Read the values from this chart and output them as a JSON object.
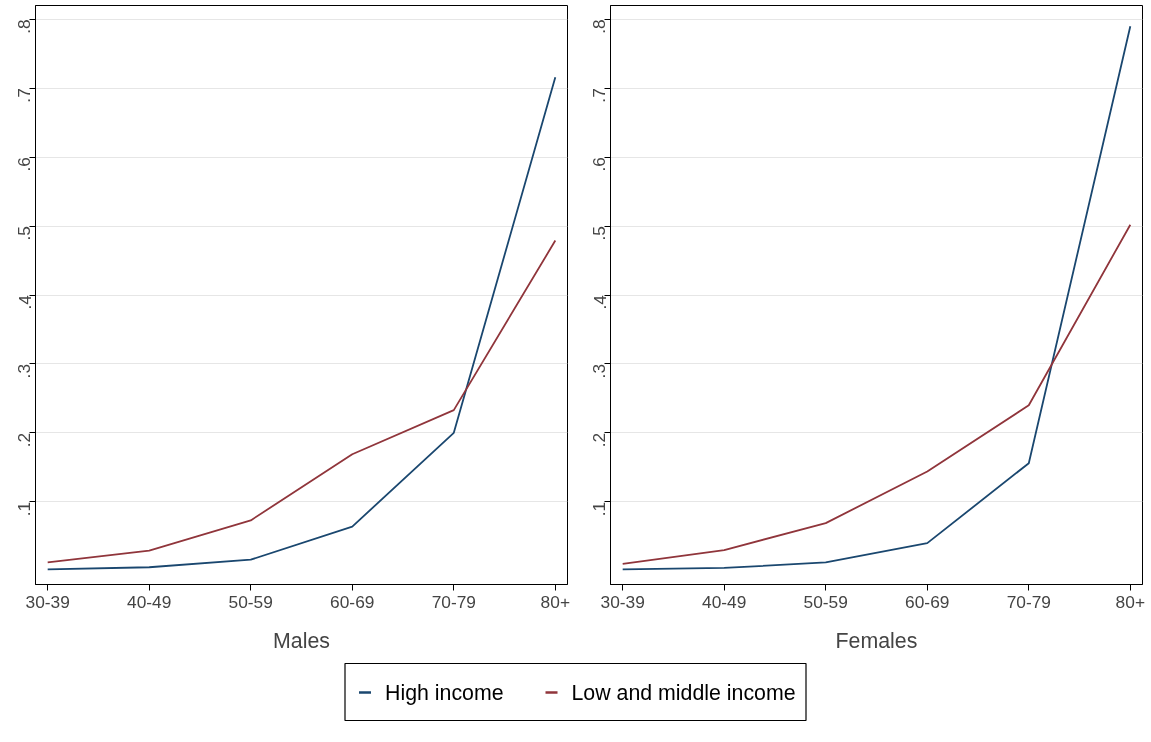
{
  "chart_data": [
    {
      "type": "line",
      "xlabel": "Males",
      "categories": [
        "30-39",
        "40-49",
        "50-59",
        "60-69",
        "70-79",
        "80+"
      ],
      "ylim": [
        -0.02,
        0.82
      ],
      "yticks": [
        {
          "value": 0.1,
          "label": ".1"
        },
        {
          "value": 0.2,
          "label": ".2"
        },
        {
          "value": 0.3,
          "label": ".3"
        },
        {
          "value": 0.4,
          "label": ".4"
        },
        {
          "value": 0.5,
          "label": ".5"
        },
        {
          "value": 0.6,
          "label": ".6"
        },
        {
          "value": 0.7,
          "label": ".7"
        },
        {
          "value": 0.8,
          "label": ".8"
        }
      ],
      "grid": "y",
      "legend": "bottom",
      "line_style": "solid",
      "series": [
        {
          "name": "High income",
          "color": "#1a476f",
          "values": [
            0.002,
            0.005,
            0.016,
            0.064,
            0.2,
            0.716
          ]
        },
        {
          "name": "Low and middle income",
          "color": "#90353b",
          "values": [
            0.012,
            0.029,
            0.073,
            0.169,
            0.233,
            0.479
          ]
        }
      ]
    },
    {
      "type": "line",
      "xlabel": "Females",
      "categories": [
        "30-39",
        "40-49",
        "50-59",
        "60-69",
        "70-79",
        "80+"
      ],
      "ylim": [
        -0.02,
        0.82
      ],
      "yticks": [
        {
          "value": 0.1,
          "label": ".1"
        },
        {
          "value": 0.2,
          "label": ".2"
        },
        {
          "value": 0.3,
          "label": ".3"
        },
        {
          "value": 0.4,
          "label": ".4"
        },
        {
          "value": 0.5,
          "label": ".5"
        },
        {
          "value": 0.6,
          "label": ".6"
        },
        {
          "value": 0.7,
          "label": ".7"
        },
        {
          "value": 0.8,
          "label": ".8"
        }
      ],
      "grid": "y",
      "line_style": "solid",
      "series": [
        {
          "color": "#1a476f",
          "values": [
            0.002,
            0.004,
            0.012,
            0.04,
            0.156,
            0.79
          ]
        },
        {
          "color": "#90353b",
          "values": [
            0.01,
            0.03,
            0.069,
            0.144,
            0.24,
            0.502
          ]
        }
      ]
    }
  ]
}
